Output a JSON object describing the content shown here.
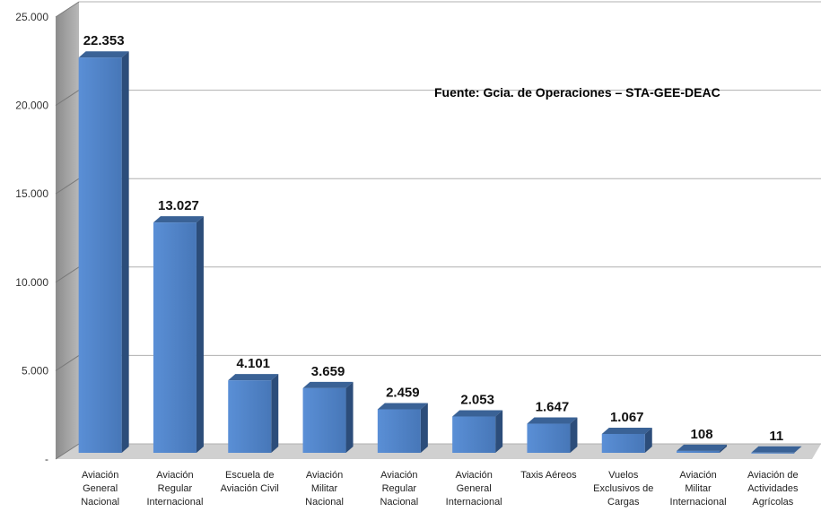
{
  "chart_data": {
    "type": "bar",
    "title": "",
    "xlabel": "",
    "ylabel": "",
    "ylim": [
      0,
      25000
    ],
    "y_ticks": [
      {
        "value": 0,
        "label": "-"
      },
      {
        "value": 5000,
        "label": "5.000"
      },
      {
        "value": 10000,
        "label": "10.000"
      },
      {
        "value": 15000,
        "label": "15.000"
      },
      {
        "value": 20000,
        "label": "20.000"
      },
      {
        "value": 25000,
        "label": "25.000"
      }
    ],
    "categories": [
      [
        "Aviación",
        "General",
        "Nacional"
      ],
      [
        "Aviación",
        "Regular",
        "Internacional"
      ],
      [
        "Escuela de",
        "Aviación Civil"
      ],
      [
        "Aviación",
        "Militar",
        "Nacional"
      ],
      [
        "Aviación",
        "Regular",
        "Nacional"
      ],
      [
        "Aviación",
        "General",
        "Internacional"
      ],
      [
        "Taxis Aéreos"
      ],
      [
        "Vuelos",
        "Exclusivos de",
        "Cargas"
      ],
      [
        "Aviación",
        "Militar",
        "Internacional"
      ],
      [
        "Aviación de",
        "Actividades",
        "Agrícolas"
      ]
    ],
    "values": [
      22353,
      13027,
      4101,
      3659,
      2459,
      2053,
      1647,
      1067,
      108,
      11
    ],
    "data_labels": [
      "22.353",
      "13.027",
      "4.101",
      "3.659",
      "2.459",
      "2.053",
      "1.647",
      "1.067",
      "108",
      "11"
    ],
    "annotation": "Fuente: Gcia. de Operaciones – STA-GEE-DEAC",
    "grid": true,
    "legend": "none",
    "colors": {
      "bar_front": "#4f81c7",
      "bar_side": "#2c4d7a",
      "bar_top": "#3a6296",
      "wall": "#9a9a9a",
      "floor": "#d0d0d0",
      "grid": "#b0b0b0"
    }
  }
}
